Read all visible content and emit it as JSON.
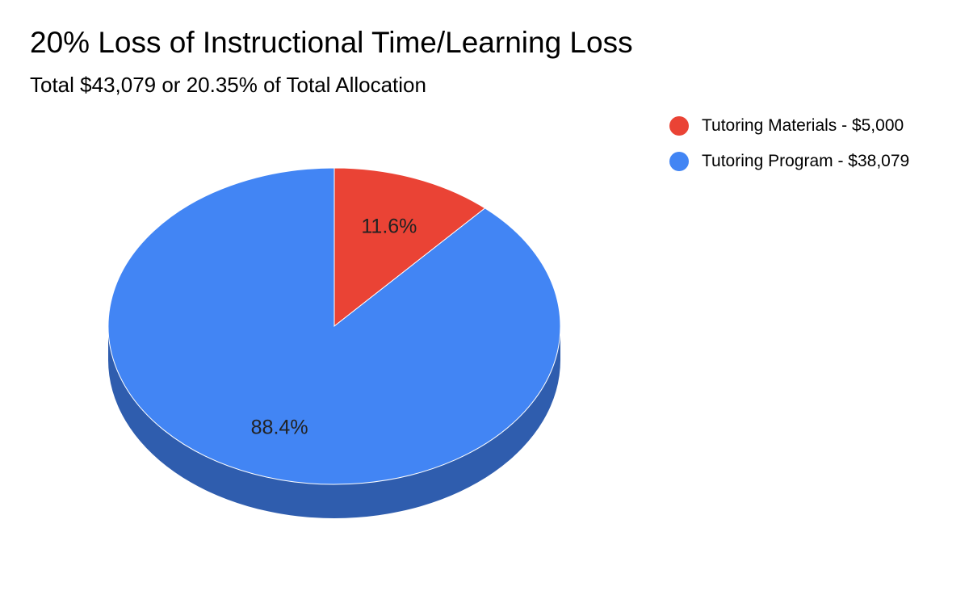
{
  "chart_data": {
    "type": "pie",
    "title": "20% Loss of Instructional Time/Learning Loss",
    "subtitle": "Total $43,079 or 20.35% of Total Allocation",
    "slices": [
      {
        "legend": "Tutoring Materials - $5,000",
        "value": 5000,
        "percent_label": "11.6%",
        "color": "#EA4335",
        "side_color": "#A8352B"
      },
      {
        "legend": "Tutoring Program - $38,079",
        "value": 38079,
        "percent_label": "88.4%",
        "color": "#4285F4",
        "side_color": "#2F5DAE"
      }
    ],
    "legend_position": "top-right",
    "style": "3d"
  }
}
